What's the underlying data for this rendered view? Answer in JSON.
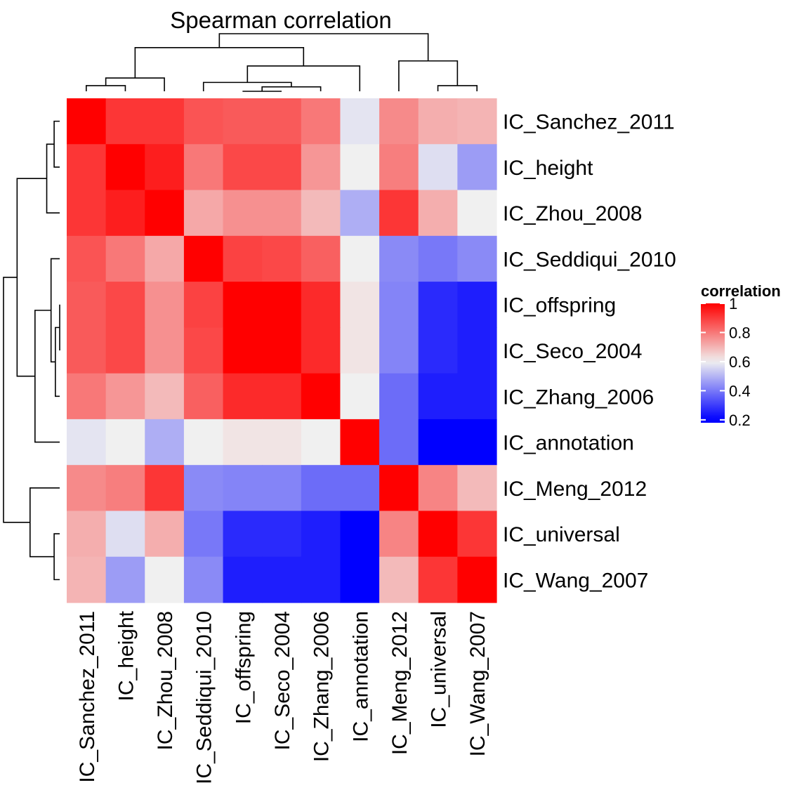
{
  "chart_data": {
    "type": "heatmap",
    "title": "Spearman correlation",
    "row_labels": [
      "IC_Sanchez_2011",
      "IC_height",
      "IC_Zhou_2008",
      "IC_Seddiqui_2010",
      "IC_offspring",
      "IC_Seco_2004",
      "IC_Zhang_2006",
      "IC_annotation",
      "IC_Meng_2012",
      "IC_universal",
      "IC_Wang_2007"
    ],
    "col_labels": [
      "IC_Sanchez_2011",
      "IC_height",
      "IC_Zhou_2008",
      "IC_Seddiqui_2010",
      "IC_offspring",
      "IC_Seco_2004",
      "IC_Zhang_2006",
      "IC_annotation",
      "IC_Meng_2012",
      "IC_universal",
      "IC_Wang_2007"
    ],
    "values": [
      [
        1.0,
        0.91,
        0.91,
        0.86,
        0.85,
        0.85,
        0.8,
        0.58,
        0.77,
        0.71,
        0.7
      ],
      [
        0.91,
        1.0,
        0.95,
        0.8,
        0.88,
        0.88,
        0.75,
        0.6,
        0.79,
        0.57,
        0.46
      ],
      [
        0.91,
        0.95,
        1.0,
        0.72,
        0.76,
        0.76,
        0.69,
        0.49,
        0.91,
        0.71,
        0.6
      ],
      [
        0.86,
        0.8,
        0.72,
        1.0,
        0.89,
        0.88,
        0.84,
        0.6,
        0.43,
        0.4,
        0.43
      ],
      [
        0.85,
        0.88,
        0.76,
        0.89,
        1.0,
        1.0,
        0.93,
        0.62,
        0.42,
        0.27,
        0.25
      ],
      [
        0.85,
        0.88,
        0.76,
        0.88,
        1.0,
        1.0,
        0.93,
        0.62,
        0.42,
        0.27,
        0.25
      ],
      [
        0.8,
        0.75,
        0.69,
        0.84,
        0.93,
        0.93,
        1.0,
        0.6,
        0.38,
        0.25,
        0.25
      ],
      [
        0.58,
        0.6,
        0.49,
        0.6,
        0.62,
        0.62,
        0.6,
        1.0,
        0.38,
        0.2,
        0.18
      ],
      [
        0.77,
        0.79,
        0.91,
        0.43,
        0.42,
        0.42,
        0.38,
        0.38,
        1.0,
        0.78,
        0.69
      ],
      [
        0.71,
        0.57,
        0.71,
        0.4,
        0.27,
        0.27,
        0.25,
        0.2,
        0.78,
        1.0,
        0.91
      ],
      [
        0.7,
        0.46,
        0.6,
        0.43,
        0.25,
        0.25,
        0.25,
        0.18,
        0.69,
        0.91,
        1.0
      ]
    ],
    "legend": {
      "title": "correlation",
      "ticks": [
        "1",
        "0.8",
        "0.6",
        "0.4",
        "0.2"
      ],
      "tick_values": [
        1.0,
        0.8,
        0.6,
        0.4,
        0.2
      ],
      "range": [
        0.18,
        1.0
      ],
      "position": "right"
    },
    "color_scale": {
      "low": "#0000ff",
      "mid": "#f0f0f0",
      "high": "#ff0000",
      "midpoint": 0.6
    },
    "dendrogram": {
      "order": [
        "IC_Sanchez_2011",
        "IC_height",
        "IC_Zhou_2008",
        "IC_Seddiqui_2010",
        "IC_offspring",
        "IC_Seco_2004",
        "IC_Zhang_2006",
        "IC_annotation",
        "IC_Meng_2012",
        "IC_universal",
        "IC_Wang_2007"
      ],
      "merges": [
        {
          "a": "IC_offspring",
          "b": "IC_Seco_2004",
          "height": 0.0
        },
        {
          "a": "IC_Sanchez_2011",
          "b": "IC_height",
          "height": 0.09
        },
        {
          "a": "IC_universal",
          "b": "IC_Wang_2007",
          "height": 0.09
        },
        {
          "a": "m0",
          "b": "IC_Zhang_2006",
          "height": 0.07
        },
        {
          "a": "IC_Seddiqui_2010",
          "b": "m3",
          "height": 0.14
        },
        {
          "a": "m1",
          "b": "IC_Zhou_2008",
          "height": 0.21
        },
        {
          "a": "m4",
          "b": "IC_annotation",
          "height": 0.4
        },
        {
          "a": "IC_Meng_2012",
          "b": "m2",
          "height": 0.48
        },
        {
          "a": "m5",
          "b": "m6",
          "height": 0.69
        },
        {
          "a": "m8",
          "b": "m7",
          "height": 0.91
        }
      ]
    }
  }
}
